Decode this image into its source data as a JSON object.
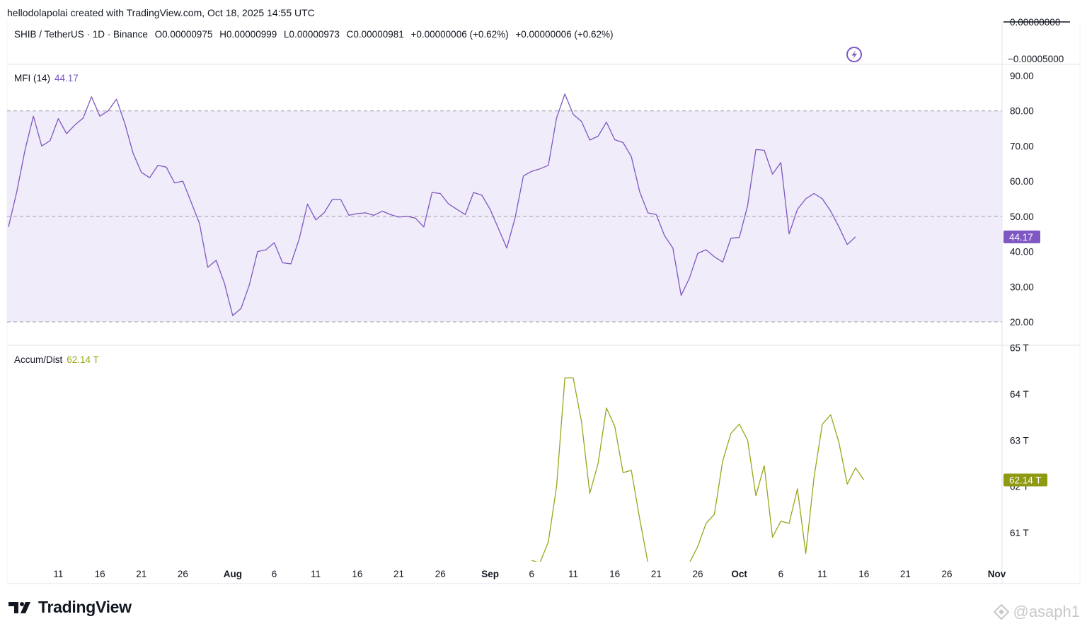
{
  "header": {
    "attribution": "hellodolapolai created with TradingView.com, Oct 18, 2025 14:55 UTC"
  },
  "symbol": {
    "pair": "SHIB / TetherUS · 1D · Binance",
    "open": "O0.00000975",
    "high": "H0.00000999",
    "low": "L0.00000973",
    "close": "C0.00000981",
    "change1": "+0.00000006 (+0.62%)",
    "change2": "+0.00000006 (+0.62%)"
  },
  "price_axis": {
    "top_label": "0.00000000",
    "label": "−0.00005000"
  },
  "colors": {
    "mfi": "#7e57c2",
    "mfi_band": "#f1ecf9",
    "ad": "#9aa519",
    "ad_badge": "#8e9a12",
    "grid_dash": "#9e9ea5"
  },
  "icons": {
    "alert": "lightning-icon",
    "logo": "tradingview-logo-icon",
    "watermark": "binance-square-icon"
  },
  "chart_data": [
    {
      "type": "line",
      "title": "MFI (14)",
      "last_value_label": "44.17",
      "ylim": [
        15.0,
        92.0
      ],
      "y_ticks": [
        "90.00",
        "80.00",
        "70.00",
        "60.00",
        "50.00",
        "40.00",
        "30.00",
        "20.00"
      ],
      "y_tick_values": [
        90,
        80,
        70,
        60,
        50,
        40,
        30,
        20
      ],
      "bands": {
        "upper": 80,
        "middle": 50,
        "lower": 20
      },
      "x_start": "2025-07-05",
      "x_labels": [
        "11",
        "16",
        "21",
        "26",
        "Aug",
        "6",
        "11",
        "16",
        "21",
        "26",
        "Sep",
        "6",
        "11",
        "16",
        "21",
        "26",
        "Oct",
        "6",
        "11",
        "16",
        "21",
        "26",
        "Nov"
      ],
      "series": [
        {
          "name": "MFI (14)",
          "values": [
            47.0,
            57.0,
            69.0,
            78.5,
            70.0,
            71.5,
            77.8,
            73.5,
            76.0,
            78.0,
            84.0,
            78.5,
            80.0,
            83.3,
            76.5,
            68.0,
            62.5,
            61.0,
            64.5,
            64.0,
            59.5,
            60.0,
            54.0,
            48.0,
            35.5,
            37.5,
            31.0,
            21.8,
            23.8,
            30.5,
            40.0,
            40.5,
            42.5,
            36.8,
            36.5,
            43.5,
            53.5,
            49.0,
            51.0,
            54.8,
            54.8,
            50.3,
            50.8,
            51.0,
            50.3,
            51.5,
            50.5,
            49.8,
            50.0,
            49.5,
            47.0,
            56.8,
            56.5,
            53.5,
            52.0,
            50.5,
            56.8,
            56.0,
            52.0,
            46.5,
            41.0,
            49.5,
            61.5,
            62.8,
            63.5,
            64.5,
            78.0,
            84.8,
            79.0,
            77.0,
            71.7,
            72.8,
            76.8,
            71.8,
            71.0,
            67.0,
            57.0,
            51.0,
            50.5,
            44.5,
            41.0,
            27.5,
            32.5,
            39.5,
            40.5,
            38.5,
            37.0,
            43.8,
            44.0,
            53.0,
            69.0,
            68.8,
            62.0,
            65.3,
            45.0,
            52.0,
            55.0,
            56.5,
            55.0,
            51.5,
            47.0,
            42.0,
            44.17
          ]
        }
      ]
    },
    {
      "type": "line",
      "title": "Accum/Dist",
      "last_value_label": "62.14 T",
      "ylim": [
        60.35,
        65.0
      ],
      "y_ticks": [
        "65 T",
        "64 T",
        "63 T",
        "62 T",
        "61 T"
      ],
      "y_tick_values": [
        65,
        64,
        63,
        62,
        61
      ],
      "x_start": "2025-07-05",
      "series": [
        {
          "name": "Accum/Dist",
          "values": [
            null,
            null,
            null,
            null,
            null,
            null,
            null,
            null,
            null,
            null,
            null,
            null,
            null,
            null,
            null,
            null,
            null,
            null,
            null,
            null,
            null,
            null,
            null,
            null,
            null,
            null,
            null,
            null,
            null,
            null,
            null,
            null,
            null,
            null,
            null,
            null,
            null,
            null,
            null,
            null,
            null,
            null,
            null,
            null,
            null,
            null,
            null,
            null,
            null,
            null,
            null,
            null,
            null,
            null,
            null,
            null,
            null,
            null,
            null,
            null,
            null,
            null,
            null,
            60.4,
            60.35,
            60.8,
            62.0,
            64.35,
            64.35,
            63.4,
            61.85,
            62.5,
            63.7,
            63.3,
            62.3,
            62.35,
            61.3,
            60.35,
            null,
            null,
            null,
            null,
            60.35,
            60.7,
            61.2,
            61.4,
            62.55,
            63.15,
            63.35,
            63.0,
            61.8,
            62.45,
            60.9,
            61.25,
            61.2,
            61.95,
            60.55,
            62.2,
            63.35,
            63.55,
            62.95,
            62.05,
            62.4,
            62.14
          ]
        }
      ]
    }
  ]
}
